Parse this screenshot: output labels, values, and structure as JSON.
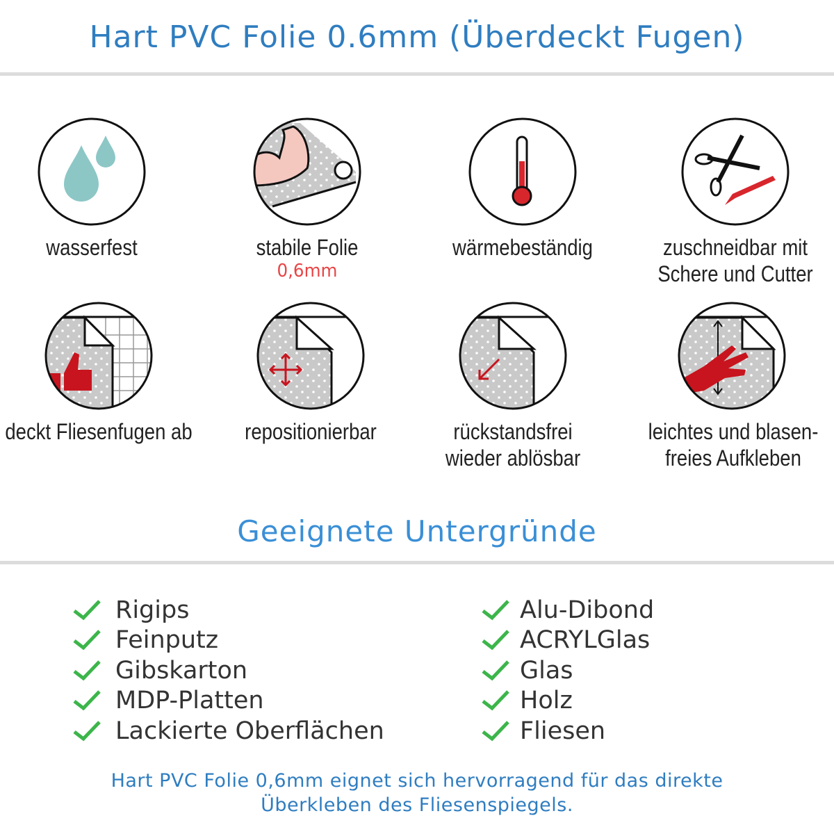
{
  "header": {
    "title": "Hart PVC Folie 0.6mm (Überdeckt Fugen)"
  },
  "features": [
    {
      "icon": "water-drops-icon",
      "lines": [
        "wasserfest"
      ]
    },
    {
      "icon": "strong-arm-icon",
      "lines": [
        "stabile Folie"
      ],
      "highlight": "0,6mm"
    },
    {
      "icon": "thermometer-icon",
      "lines": [
        "wärmebeständig"
      ]
    },
    {
      "icon": "scissors-cutter-icon",
      "lines": [
        "zuschneidbar mit",
        "Schere und Cutter"
      ]
    },
    {
      "icon": "thumbs-up-tile-icon",
      "lines": [
        "deckt Fliesenfugen ab"
      ]
    },
    {
      "icon": "move-arrows-icon",
      "lines": [
        "repositionierbar"
      ]
    },
    {
      "icon": "peel-arrow-icon",
      "lines": [
        "rückstandsfrei",
        "wieder ablösbar"
      ]
    },
    {
      "icon": "hand-smooth-icon",
      "lines": [
        "leichtes und blasen-",
        "freies Aufkleben"
      ]
    }
  ],
  "surfaces": {
    "title": "Geeignete Untergründe",
    "left": [
      "Rigips",
      "Feinputz",
      "Gibskarton",
      "MDP-Platten",
      "Lackierte Oberflächen"
    ],
    "right": [
      "Alu-Dibond",
      "ACRYLGlas",
      "Glas",
      "Holz",
      "Fliesen"
    ]
  },
  "footer": {
    "lines": [
      "Hart PVC Folie 0,6mm eignet sich hervorragend für das direkte",
      "Überkleben des Fliesenspiegels."
    ]
  },
  "colors": {
    "title": "#2f7dc0",
    "check": "#3cb54a",
    "accent_red": "#e84545",
    "drop": "#8cc7c6"
  }
}
